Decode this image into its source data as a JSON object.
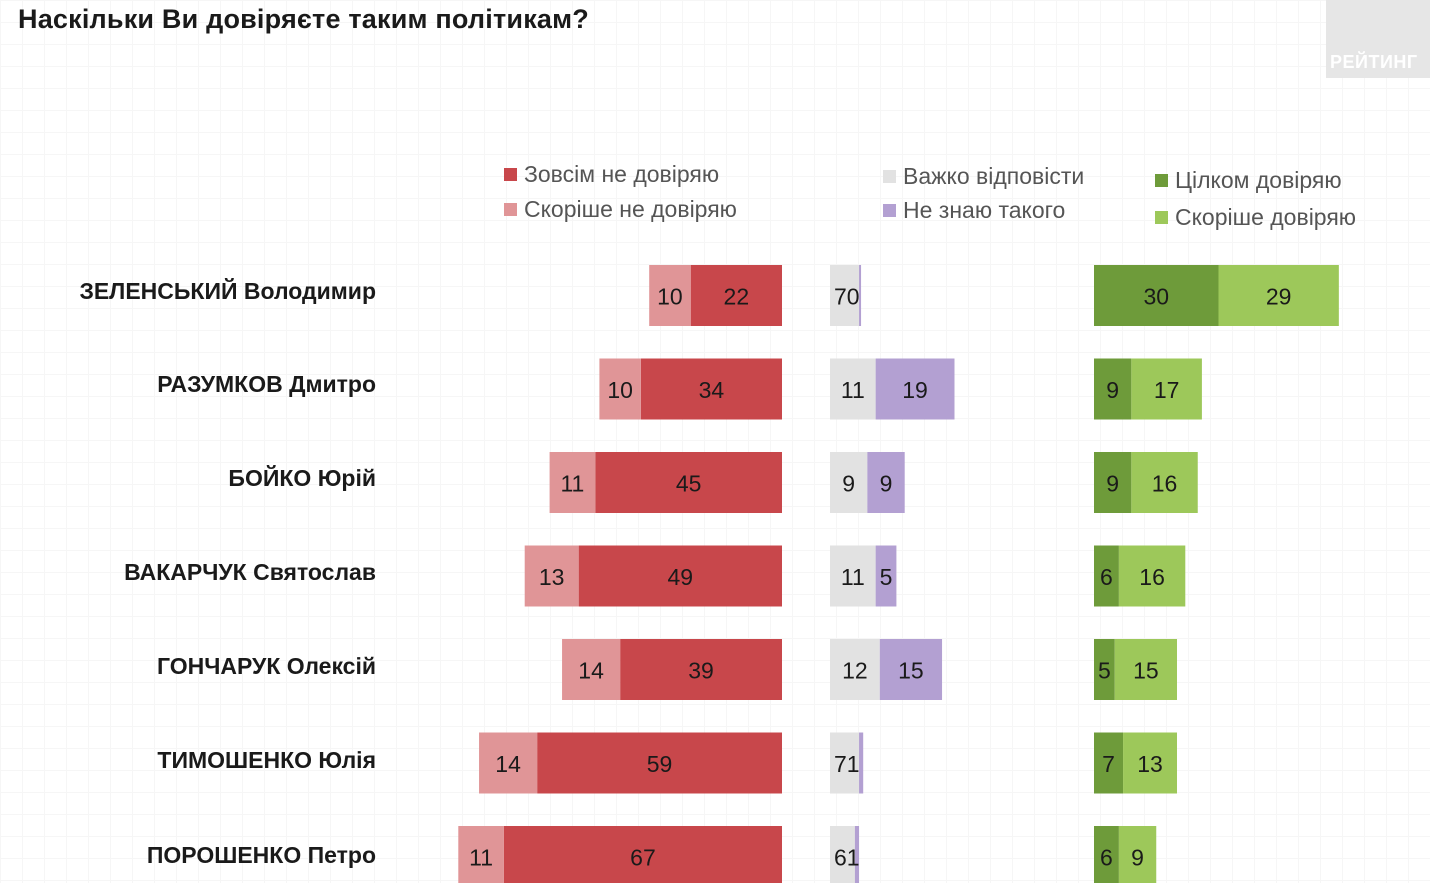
{
  "title": "Наскільки Ви довіряєте таким політикам?",
  "logo_text": "РЕЙТИНГ",
  "legend": [
    {
      "label": "Зовсім не довіряю",
      "color": "#c8474b"
    },
    {
      "label": "Скоріше не довіряю",
      "color": "#e09597"
    },
    {
      "label": "Важко відповісти",
      "color": "#e2e2e2"
    },
    {
      "label": "Не знаю такого",
      "color": "#b3a0d2"
    },
    {
      "label": "Цілком довіряю",
      "color": "#6e9b3a"
    },
    {
      "label": "Скоріше довіряю",
      "color": "#9dc85a"
    }
  ],
  "chart_data": {
    "type": "bar",
    "orientation": "horizontal",
    "stacked": true,
    "categories": [
      "ЗЕЛЕНСЬКИЙ Володимир",
      "РАЗУМКОВ Дмитро",
      "БОЙКО Юрій",
      "ВАКАРЧУК Святослав",
      "ГОНЧАРУК Олексій",
      "ТИМОШЕНКО Юлія",
      "ПОРОШЕНКО Петро"
    ],
    "series": [
      {
        "name": "Зовсім не довіряю",
        "values": [
          22,
          34,
          45,
          49,
          39,
          59,
          67
        ]
      },
      {
        "name": "Скоріше не довіряю",
        "values": [
          10,
          10,
          11,
          13,
          14,
          14,
          11
        ]
      },
      {
        "name": "Важко відповісти",
        "values": [
          7,
          11,
          9,
          11,
          12,
          7,
          6
        ]
      },
      {
        "name": "Не знаю такого",
        "values": [
          0,
          19,
          9,
          5,
          15,
          1,
          1
        ]
      },
      {
        "name": "Цілком довіряю",
        "values": [
          30,
          9,
          9,
          6,
          5,
          7,
          6
        ]
      },
      {
        "name": "Скоріше довіряю",
        "values": [
          29,
          17,
          16,
          16,
          15,
          13,
          9
        ]
      }
    ],
    "value_labels": {
      "distrust_strong": [
        "22",
        "34",
        "45",
        "49",
        "39",
        "59",
        "67"
      ],
      "distrust_rather": [
        "10",
        "10",
        "11",
        "13",
        "14",
        "14",
        "11"
      ],
      "hard_to_say": [
        "7",
        "11",
        "9",
        "11",
        "12",
        "7",
        "6"
      ],
      "dont_know": [
        "0",
        "19",
        "9",
        "5",
        "15",
        "1",
        "1"
      ],
      "trust_full": [
        "30",
        "9",
        "9",
        "6",
        "5",
        "7",
        "6"
      ],
      "trust_rather": [
        "29",
        "17",
        "16",
        "16",
        "15",
        "13",
        "9"
      ]
    },
    "legend_position": "top"
  }
}
